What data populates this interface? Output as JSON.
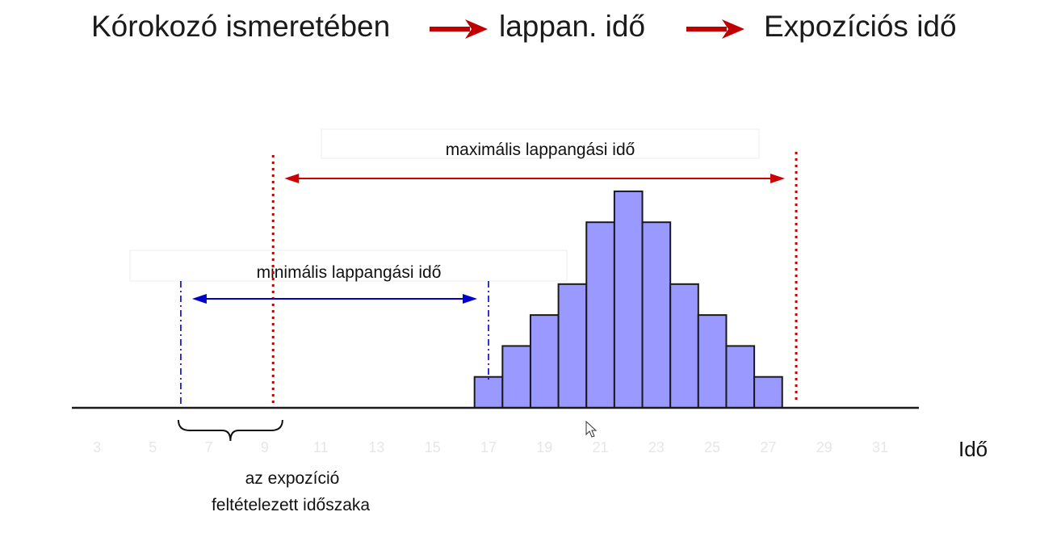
{
  "header": {
    "step_1": "Kórokozó ismeretében",
    "step_2": "lappan. idő",
    "step_3": "Expozíciós idő",
    "arrow_color": "#c00000"
  },
  "labels": {
    "max_incubation": "maximális lappangási idő",
    "min_incubation": "minimális lappangási idő",
    "exposure_line1": "az expozíció",
    "exposure_line2": "feltételezett időszaka",
    "x_axis": "Idő"
  },
  "colors": {
    "bar_fill": "#9999ff",
    "bar_stroke": "#1a1a1a",
    "max_marker": "#cc0000",
    "min_marker": "#0000cc"
  },
  "chart_data": {
    "type": "bar",
    "x_ticks": [
      3,
      5,
      7,
      9,
      11,
      13,
      15,
      17,
      19,
      21,
      23,
      25,
      27,
      29,
      31
    ],
    "x_range": [
      2,
      32
    ],
    "bins": [
      {
        "x": 17,
        "count": 1
      },
      {
        "x": 18,
        "count": 2
      },
      {
        "x": 19,
        "count": 3
      },
      {
        "x": 20,
        "count": 4
      },
      {
        "x": 21,
        "count": 6
      },
      {
        "x": 22,
        "count": 7
      },
      {
        "x": 23,
        "count": 6
      },
      {
        "x": 24,
        "count": 4
      },
      {
        "x": 25,
        "count": 3
      },
      {
        "x": 26,
        "count": 2
      },
      {
        "x": 27,
        "count": 1
      }
    ],
    "y_range": [
      0,
      7
    ],
    "max_incubation_from": 9.3,
    "max_incubation_to": 28,
    "min_incubation_from": 6,
    "min_incubation_to": 17,
    "exposure_from": 6,
    "exposure_to": 9
  }
}
